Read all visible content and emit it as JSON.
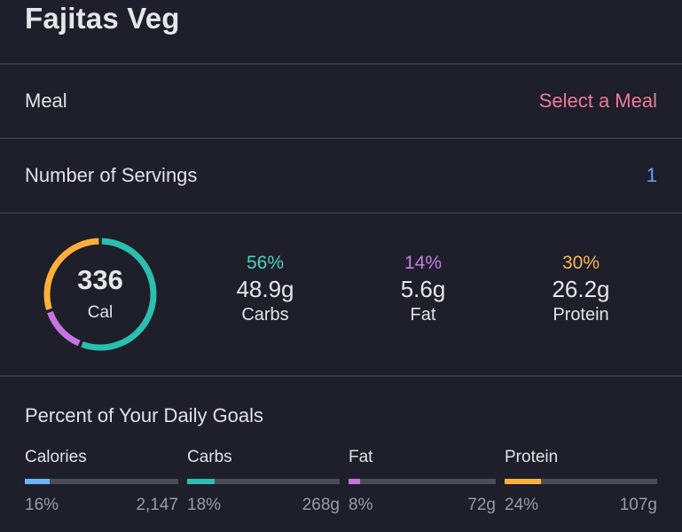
{
  "header": {
    "title": "Fajitas Veg"
  },
  "meal_row": {
    "label": "Meal",
    "value": "Select a Meal",
    "value_color": "#f0789a"
  },
  "servings_row": {
    "label": "Number of Servings",
    "value": "1",
    "value_color": "#5ea6f5"
  },
  "summary": {
    "calories": "336",
    "calories_unit": "Cal",
    "ring_segments": [
      {
        "name": "Carbs",
        "percent": 56,
        "color": "#2bbfb0"
      },
      {
        "name": "Fat",
        "percent": 14,
        "color": "#c773e0"
      },
      {
        "name": "Protein",
        "percent": 30,
        "color": "#fbb03b"
      }
    ],
    "macros": [
      {
        "percent": "56%",
        "grams": "48.9g",
        "name": "Carbs",
        "color": "#4fcfc2"
      },
      {
        "percent": "14%",
        "grams": "5.6g",
        "name": "Fat",
        "color": "#c57ee0"
      },
      {
        "percent": "30%",
        "grams": "26.2g",
        "name": "Protein",
        "color": "#f6b75a"
      }
    ]
  },
  "daily_goals": {
    "title": "Percent of Your Daily Goals",
    "items": [
      {
        "label": "Calories",
        "percent": "16%",
        "fill": 16,
        "total": "2,147",
        "color": "#6cb4f8"
      },
      {
        "label": "Carbs",
        "percent": "18%",
        "fill": 18,
        "total": "268g",
        "color": "#2bbfb0"
      },
      {
        "label": "Fat",
        "percent": "8%",
        "fill": 8,
        "total": "72g",
        "color": "#c773e0"
      },
      {
        "label": "Protein",
        "percent": "24%",
        "fill": 24,
        "total": "107g",
        "color": "#fbb03b"
      }
    ]
  }
}
